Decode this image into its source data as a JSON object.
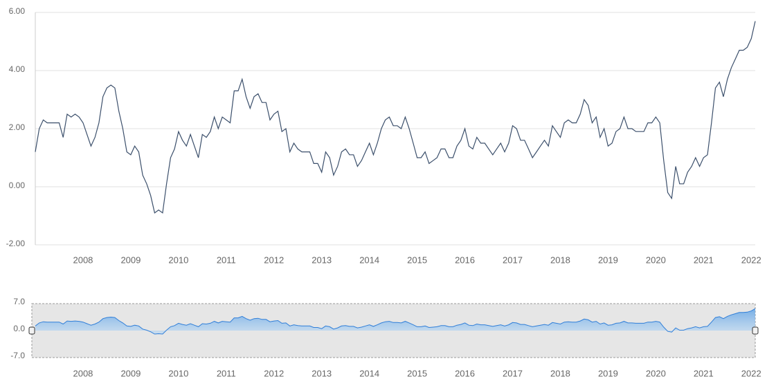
{
  "chart_data": {
    "type": "line",
    "color": "#3b4f6b",
    "grid": true,
    "x": [
      "2007-01",
      "2007-02",
      "2007-03",
      "2007-04",
      "2007-05",
      "2007-06",
      "2007-07",
      "2007-08",
      "2007-09",
      "2007-10",
      "2007-11",
      "2007-12",
      "2008-01",
      "2008-02",
      "2008-03",
      "2008-04",
      "2008-05",
      "2008-06",
      "2008-07",
      "2008-08",
      "2008-09",
      "2008-10",
      "2008-11",
      "2008-12",
      "2009-01",
      "2009-02",
      "2009-03",
      "2009-04",
      "2009-05",
      "2009-06",
      "2009-07",
      "2009-08",
      "2009-09",
      "2009-10",
      "2009-11",
      "2009-12",
      "2010-01",
      "2010-02",
      "2010-03",
      "2010-04",
      "2010-05",
      "2010-06",
      "2010-07",
      "2010-08",
      "2010-09",
      "2010-10",
      "2010-11",
      "2010-12",
      "2011-01",
      "2011-02",
      "2011-03",
      "2011-04",
      "2011-05",
      "2011-06",
      "2011-07",
      "2011-08",
      "2011-09",
      "2011-10",
      "2011-11",
      "2011-12",
      "2012-01",
      "2012-02",
      "2012-03",
      "2012-04",
      "2012-05",
      "2012-06",
      "2012-07",
      "2012-08",
      "2012-09",
      "2012-10",
      "2012-11",
      "2012-12",
      "2013-01",
      "2013-02",
      "2013-03",
      "2013-04",
      "2013-05",
      "2013-06",
      "2013-07",
      "2013-08",
      "2013-09",
      "2013-10",
      "2013-11",
      "2013-12",
      "2014-01",
      "2014-02",
      "2014-03",
      "2014-04",
      "2014-05",
      "2014-06",
      "2014-07",
      "2014-08",
      "2014-09",
      "2014-10",
      "2014-11",
      "2014-12",
      "2015-01",
      "2015-02",
      "2015-03",
      "2015-04",
      "2015-05",
      "2015-06",
      "2015-07",
      "2015-08",
      "2015-09",
      "2015-10",
      "2015-11",
      "2015-12",
      "2016-01",
      "2016-02",
      "2016-03",
      "2016-04",
      "2016-05",
      "2016-06",
      "2016-07",
      "2016-08",
      "2016-09",
      "2016-10",
      "2016-11",
      "2016-12",
      "2017-01",
      "2017-02",
      "2017-03",
      "2017-04",
      "2017-05",
      "2017-06",
      "2017-07",
      "2017-08",
      "2017-09",
      "2017-10",
      "2017-11",
      "2017-12",
      "2018-01",
      "2018-02",
      "2018-03",
      "2018-04",
      "2018-05",
      "2018-06",
      "2018-07",
      "2018-08",
      "2018-09",
      "2018-10",
      "2018-11",
      "2018-12",
      "2019-01",
      "2019-02",
      "2019-03",
      "2019-04",
      "2019-05",
      "2019-06",
      "2019-07",
      "2019-08",
      "2019-09",
      "2019-10",
      "2019-11",
      "2019-12",
      "2020-01",
      "2020-02",
      "2020-03",
      "2020-04",
      "2020-05",
      "2020-06",
      "2020-07",
      "2020-08",
      "2020-09",
      "2020-10",
      "2020-11",
      "2020-12",
      "2021-01",
      "2021-02",
      "2021-03",
      "2021-04",
      "2021-05",
      "2021-06",
      "2021-07",
      "2021-08",
      "2021-09",
      "2021-10",
      "2021-11",
      "2021-12",
      "2022-01",
      "2022-02"
    ],
    "values": [
      1.2,
      2.0,
      2.3,
      2.2,
      2.2,
      2.2,
      2.2,
      1.7,
      2.5,
      2.4,
      2.5,
      2.4,
      2.2,
      1.8,
      1.4,
      1.7,
      2.2,
      3.1,
      3.4,
      3.5,
      3.4,
      2.6,
      2.0,
      1.2,
      1.1,
      1.4,
      1.2,
      0.4,
      0.1,
      -0.3,
      -0.9,
      -0.8,
      -0.9,
      0.1,
      1.0,
      1.3,
      1.9,
      1.6,
      1.4,
      1.8,
      1.4,
      1.0,
      1.8,
      1.7,
      1.9,
      2.4,
      2.0,
      2.4,
      2.3,
      2.2,
      3.3,
      3.3,
      3.7,
      3.1,
      2.7,
      3.1,
      3.2,
      2.9,
      2.9,
      2.3,
      2.5,
      2.6,
      1.9,
      2.0,
      1.2,
      1.5,
      1.3,
      1.2,
      1.2,
      1.2,
      0.8,
      0.8,
      0.5,
      1.2,
      1.0,
      0.4,
      0.7,
      1.2,
      1.3,
      1.1,
      1.1,
      0.7,
      0.9,
      1.2,
      1.5,
      1.1,
      1.5,
      2.0,
      2.3,
      2.4,
      2.1,
      2.1,
      2.0,
      2.4,
      2.0,
      1.5,
      1.0,
      1.0,
      1.2,
      0.8,
      0.9,
      1.0,
      1.3,
      1.3,
      1.0,
      1.0,
      1.4,
      1.6,
      2.0,
      1.4,
      1.3,
      1.7,
      1.5,
      1.5,
      1.3,
      1.1,
      1.3,
      1.5,
      1.2,
      1.5,
      2.1,
      2.0,
      1.6,
      1.6,
      1.3,
      1.0,
      1.2,
      1.4,
      1.6,
      1.4,
      2.1,
      1.9,
      1.7,
      2.2,
      2.3,
      2.2,
      2.2,
      2.5,
      3.0,
      2.8,
      2.2,
      2.4,
      1.7,
      2.0,
      1.4,
      1.5,
      1.9,
      2.0,
      2.4,
      2.0,
      2.0,
      1.9,
      1.9,
      1.9,
      2.2,
      2.2,
      2.4,
      2.2,
      0.9,
      -0.2,
      -0.4,
      0.7,
      0.1,
      0.1,
      0.5,
      0.7,
      1.0,
      0.7,
      1.0,
      1.1,
      2.2,
      3.4,
      3.6,
      3.1,
      3.7,
      4.1,
      4.4,
      4.7,
      4.7,
      4.8,
      5.1,
      5.7
    ],
    "ylim": [
      -2,
      6
    ],
    "yticks": [
      {
        "value": -2,
        "label": "-2.00"
      },
      {
        "value": 0,
        "label": "0.00"
      },
      {
        "value": 2,
        "label": "2.00"
      },
      {
        "value": 4,
        "label": "4.00"
      },
      {
        "value": 6,
        "label": "6.00"
      }
    ],
    "xticks": [
      "2008",
      "2009",
      "2010",
      "2011",
      "2012",
      "2013",
      "2014",
      "2015",
      "2016",
      "2017",
      "2018",
      "2019",
      "2020",
      "2021",
      "2022"
    ],
    "navigator": {
      "color": "#2f7ed8",
      "ylim": [
        -7,
        7
      ],
      "yticks": [
        {
          "value": -7,
          "label": "-7.0"
        },
        {
          "value": 0,
          "label": "0.0"
        },
        {
          "value": 7,
          "label": "7.0"
        }
      ]
    }
  }
}
